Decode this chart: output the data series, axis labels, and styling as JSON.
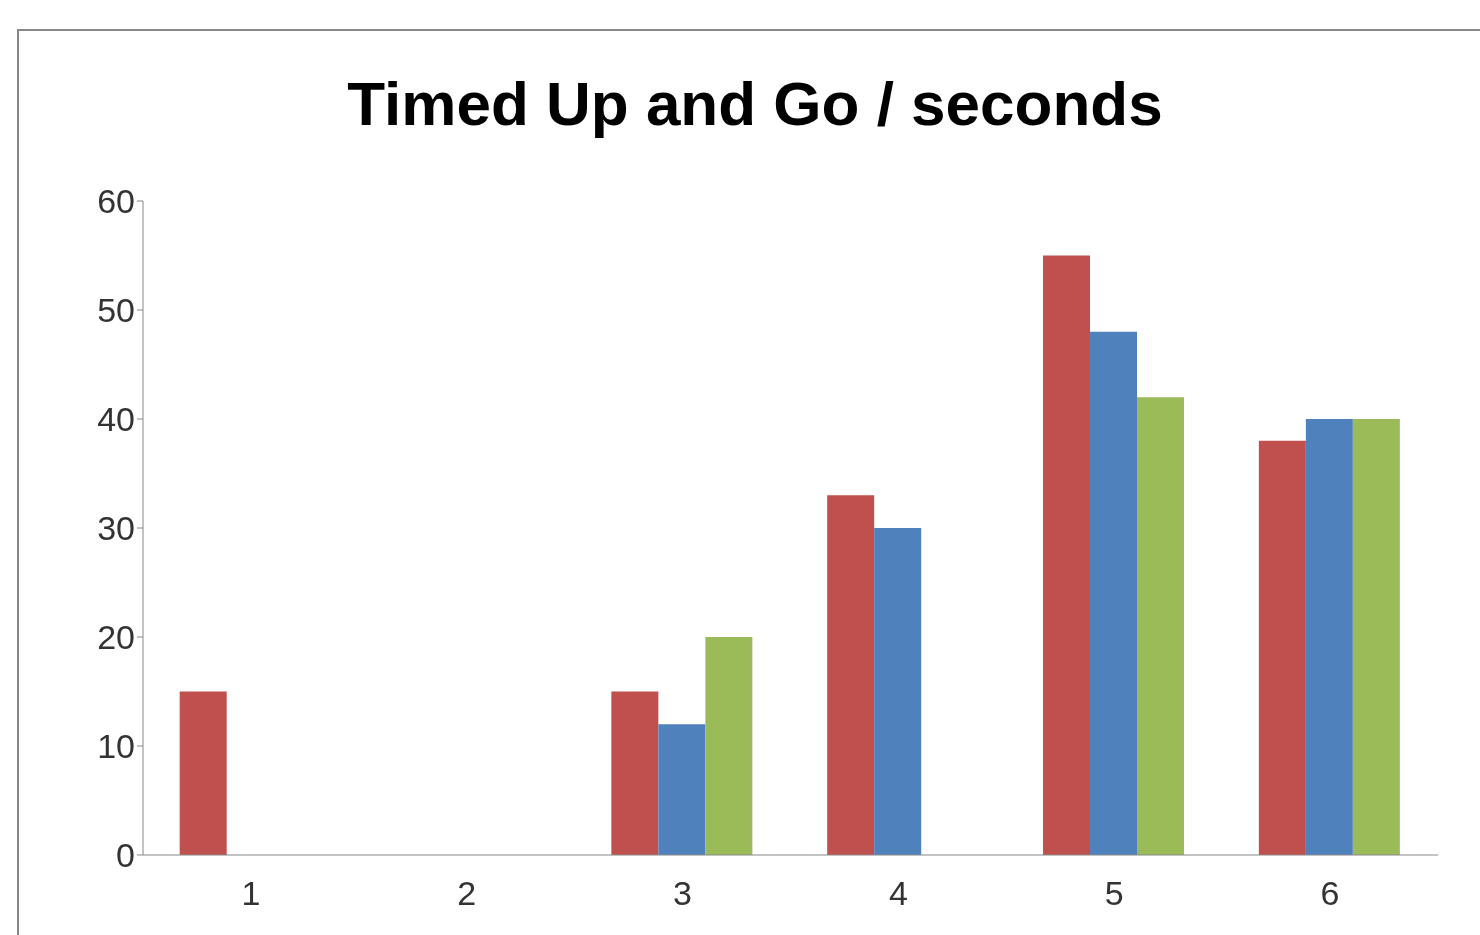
{
  "chart_data": {
    "type": "bar",
    "title": "Timed Up and Go / seconds",
    "categories": [
      "1",
      "2",
      "3",
      "4",
      "5",
      "6"
    ],
    "series": [
      {
        "color": "#c0504d",
        "values": [
          15,
          null,
          15,
          33,
          55,
          38
        ]
      },
      {
        "color": "#4f81bd",
        "values": [
          null,
          null,
          12,
          30,
          48,
          40
        ]
      },
      {
        "color": "#9bbb59",
        "values": [
          null,
          null,
          20,
          null,
          42,
          40
        ]
      }
    ],
    "ylim": [
      0,
      60
    ],
    "yticks": [
      0,
      10,
      20,
      30,
      40,
      50,
      60
    ],
    "grid": false,
    "legend": false
  }
}
